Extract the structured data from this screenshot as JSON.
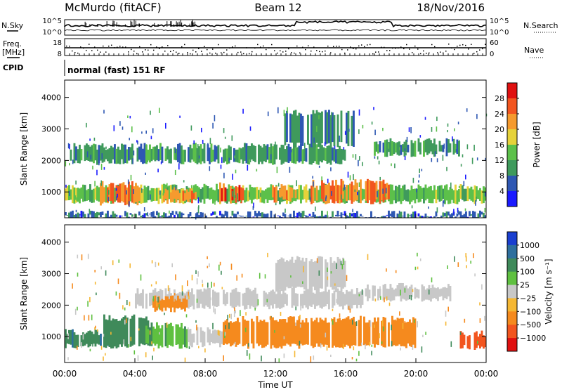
{
  "header": {
    "station": "McMurdo (fitACF)",
    "beam": "Beam 12",
    "date": "18/Nov/2016"
  },
  "strip": {
    "nsky_label": "N.Sky",
    "nsearch_label": "N.Search",
    "freq_label_1": "Freq.",
    "freq_label_2": "[MHz]",
    "nave_label": "Nave",
    "cpid_label": "CPID",
    "cpid_text": "normal (fast) 151 RF",
    "noise_left_ticks": [
      "10^5",
      "10^0"
    ],
    "noise_right_ticks": [
      "10^5",
      "10^0"
    ],
    "freq_ticks": [
      "18",
      "8"
    ],
    "nave_ticks": [
      "60",
      "0"
    ]
  },
  "chart_data": [
    {
      "type": "heatmap",
      "name": "power",
      "ylabel": "Slant Range [km]",
      "ylim": [
        180,
        4550
      ],
      "yticks": [
        1000,
        2000,
        3000,
        4000
      ],
      "xlim": [
        0,
        24
      ],
      "colorbar": {
        "label": "Power [dB]",
        "ticks": [
          4,
          8,
          12,
          16,
          20,
          24,
          28
        ],
        "colors": [
          "#1a1aff",
          "#2e57b3",
          "#3f9a5c",
          "#5cc04a",
          "#e6d23a",
          "#f59a2e",
          "#f2551f",
          "#e01010"
        ],
        "range": [
          0,
          32
        ]
      },
      "bands": [
        {
          "t0": 0.0,
          "t1": 24.0,
          "r0": 700,
          "r1": 1150,
          "value": 14
        },
        {
          "t0": 2.0,
          "t1": 4.3,
          "r0": 650,
          "r1": 1250,
          "value": 24
        },
        {
          "t0": 5.5,
          "t1": 7.5,
          "r0": 700,
          "r1": 1050,
          "value": 22
        },
        {
          "t0": 8.7,
          "t1": 10.3,
          "r0": 700,
          "r1": 1200,
          "value": 26
        },
        {
          "t0": 11.8,
          "t1": 13.2,
          "r0": 750,
          "r1": 1150,
          "value": 22
        },
        {
          "t0": 14.0,
          "t1": 18.5,
          "r0": 700,
          "r1": 1300,
          "value": 24
        },
        {
          "t0": 0.3,
          "t1": 16.0,
          "r0": 1950,
          "r1": 2450,
          "value": 10
        },
        {
          "t0": 12.5,
          "t1": 16.5,
          "r0": 2500,
          "r1": 3500,
          "value": 8
        },
        {
          "t0": 17.5,
          "t1": 22.5,
          "r0": 2200,
          "r1": 2600,
          "value": 10
        },
        {
          "t0": 0.0,
          "t1": 24.0,
          "r0": 200,
          "r1": 300,
          "value": 6
        }
      ]
    },
    {
      "type": "heatmap",
      "name": "velocity",
      "xlabel": "Time UT",
      "ylabel": "Slant Range [km]",
      "ylim": [
        180,
        4550
      ],
      "yticks": [
        1000,
        2000,
        3000,
        4000
      ],
      "xlim": [
        0,
        24
      ],
      "xticks": [
        "00:00",
        "04:00",
        "08:00",
        "12:00",
        "16:00",
        "20:00",
        "00:00"
      ],
      "colorbar": {
        "label": "Velocity [m s⁻¹]",
        "ticks": [
          "1000",
          "500",
          "100",
          "25",
          "−25",
          "−100",
          "−500",
          "−1000"
        ],
        "colors": [
          "#1a3fd0",
          "#2e6f9e",
          "#3f8a5a",
          "#5fc040",
          "#c8c8c8",
          "#f5b733",
          "#f58a1e",
          "#f2551f",
          "#e01010"
        ]
      },
      "bands": [
        {
          "t0": 0.0,
          "t1": 2.5,
          "r0": 700,
          "r1": 1150,
          "value": 450
        },
        {
          "t0": 2.2,
          "t1": 4.8,
          "r0": 700,
          "r1": 1600,
          "value": 400
        },
        {
          "t0": 4.5,
          "t1": 7.0,
          "r0": 700,
          "r1": 1350,
          "value": 80
        },
        {
          "t0": 7.0,
          "t1": 9.0,
          "r0": 750,
          "r1": 1200,
          "value": 0
        },
        {
          "t0": 9.0,
          "t1": 20.0,
          "r0": 700,
          "r1": 1550,
          "value": -200
        },
        {
          "t0": 22.5,
          "t1": 24.0,
          "r0": 650,
          "r1": 1100,
          "value": -700
        },
        {
          "t0": 4.0,
          "t1": 17.0,
          "r0": 1950,
          "r1": 2450,
          "value": 0
        },
        {
          "t0": 5.0,
          "t1": 7.0,
          "r0": 1850,
          "r1": 2200,
          "value": -300
        },
        {
          "t0": 12.0,
          "t1": 16.0,
          "r0": 2500,
          "r1": 3450,
          "value": 0
        },
        {
          "t0": 17.0,
          "t1": 22.0,
          "r0": 2200,
          "r1": 2600,
          "value": 0
        }
      ]
    }
  ]
}
